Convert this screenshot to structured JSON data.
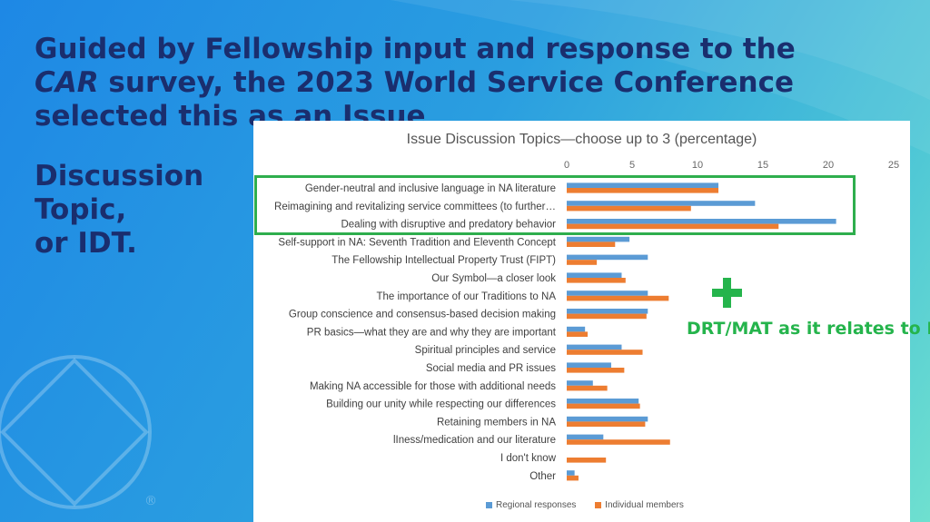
{
  "heading": {
    "line1": "Guided by Fellowship input and response to the",
    "car": "CAR",
    "line2_rest": " survey, the 2023 World Service Conference",
    "line3": "selected this as an Issue",
    "side_lines": [
      "Discussion",
      "Topic,",
      "or IDT."
    ]
  },
  "logo": {
    "icon": "na-diamond-circle-logo",
    "mark": "®"
  },
  "callout": {
    "icon": "plus-icon",
    "text": "DRT/MAT as it relates to NA",
    "color": "#25b44c"
  },
  "colors": {
    "regional": "#5b9bd5",
    "individual": "#ed7d31",
    "highlight": "#2eae4d",
    "heading": "#1a2e6e"
  },
  "chart_data": {
    "type": "bar",
    "orientation": "horizontal",
    "title": "Issue Discussion Topics—choose up to 3 (percentage)",
    "xlim": [
      0,
      25
    ],
    "xticks": [
      0,
      5,
      10,
      15,
      20,
      25
    ],
    "grid": false,
    "legend_position": "bottom",
    "categories": [
      "Gender-neutral and inclusive language in NA literature",
      "Reimagining and revitalizing service committees (to further…",
      "Dealing with disruptive and predatory behavior",
      "Self-support in NA: Seventh Tradition and Eleventh Concept",
      "The Fellowship Intellectual Property Trust (FIPT)",
      "Our Symbol—a closer look",
      "The importance of our Traditions to NA",
      "Group conscience and consensus-based decision making",
      "PR basics—what they are and why they are important",
      "Spiritual principles and service",
      "Social media and PR issues",
      "Making NA accessible for those with additional needs",
      "Building our unity while respecting our differences",
      "Retaining members in NA",
      "lIness/medication and our literature",
      "I don't know",
      "Other"
    ],
    "series": [
      {
        "name": "Regional responses",
        "color": "#5b9bd5",
        "values": [
          11.6,
          14.4,
          20.6,
          4.8,
          6.2,
          4.2,
          6.2,
          6.2,
          1.4,
          4.2,
          3.4,
          2.0,
          5.5,
          6.2,
          2.8,
          0,
          0.6
        ]
      },
      {
        "name": "Individual members",
        "color": "#ed7d31",
        "values": [
          11.6,
          9.5,
          16.2,
          3.7,
          2.3,
          4.5,
          7.8,
          6.1,
          1.6,
          5.8,
          4.4,
          3.1,
          5.6,
          6.0,
          7.9,
          3.0,
          0.9
        ]
      }
    ],
    "highlighted_categories": [
      0,
      1,
      2
    ]
  }
}
